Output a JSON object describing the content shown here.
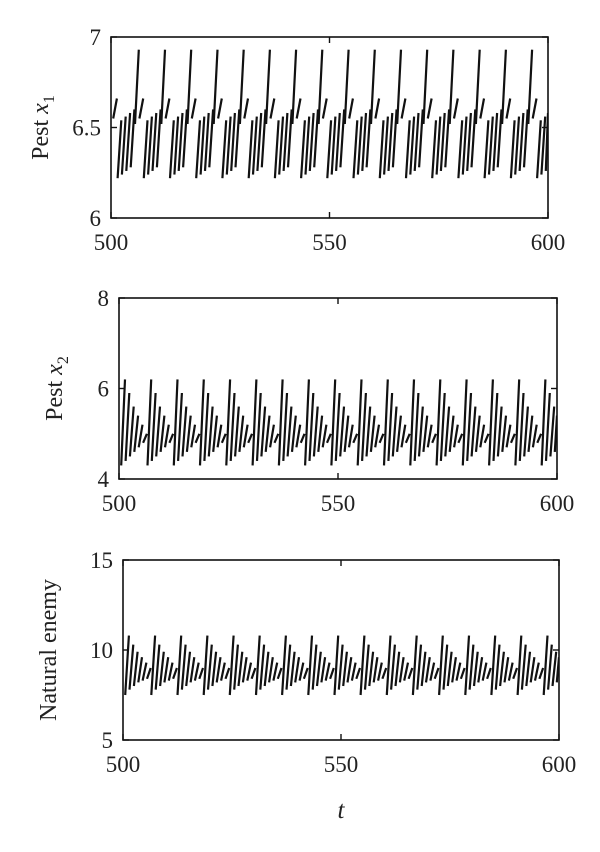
{
  "chart_data": [
    {
      "type": "line",
      "ylabel_text": "Pest ",
      "ylabel_var": "x",
      "ylabel_sub": "1",
      "xlim": [
        500,
        600
      ],
      "ylim": [
        6,
        7
      ],
      "xticks": [
        "500",
        "550",
        "600"
      ],
      "yticks": [
        "6",
        "6.5",
        "7"
      ],
      "period": 6,
      "pulse_offset": 0.5,
      "segments": [
        {
          "y0": 6.55,
          "y1": 6.66
        },
        {
          "y0": 6.22,
          "y1": 6.54
        },
        {
          "y0": 6.24,
          "y1": 6.56
        },
        {
          "y0": 6.26,
          "y1": 6.58
        },
        {
          "y0": 6.28,
          "y1": 6.6
        },
        {
          "y0": 6.52,
          "y1": 6.93
        }
      ]
    },
    {
      "type": "line",
      "ylabel_text": "Pest ",
      "ylabel_var": "x",
      "ylabel_sub": "2",
      "xlim": [
        500,
        600
      ],
      "ylim": [
        4,
        8
      ],
      "xticks": [
        "500",
        "550",
        "600"
      ],
      "yticks": [
        "4",
        "6",
        "8"
      ],
      "period": 6,
      "pulse_offset": 0.5,
      "segments": [
        {
          "y0": 4.3,
          "y1": 6.2
        },
        {
          "y0": 4.4,
          "y1": 5.9
        },
        {
          "y0": 4.5,
          "y1": 5.6
        },
        {
          "y0": 4.6,
          "y1": 5.4
        },
        {
          "y0": 4.7,
          "y1": 5.2
        },
        {
          "y0": 4.8,
          "y1": 5.0
        }
      ]
    },
    {
      "type": "line",
      "ylabel_text": "Natural enemy",
      "ylabel_var": "",
      "ylabel_sub": "",
      "xlim": [
        500,
        600
      ],
      "ylim": [
        5,
        15
      ],
      "xticks": [
        "500",
        "550",
        "600"
      ],
      "yticks": [
        "5",
        "10",
        "15"
      ],
      "xlabel": "t",
      "period": 6,
      "pulse_offset": 0.5,
      "segments": [
        {
          "y0": 7.5,
          "y1": 10.8
        },
        {
          "y0": 7.8,
          "y1": 10.3
        },
        {
          "y0": 8.0,
          "y1": 9.9
        },
        {
          "y0": 8.2,
          "y1": 9.6
        },
        {
          "y0": 8.3,
          "y1": 9.3
        },
        {
          "y0": 8.4,
          "y1": 9.0
        }
      ]
    }
  ]
}
